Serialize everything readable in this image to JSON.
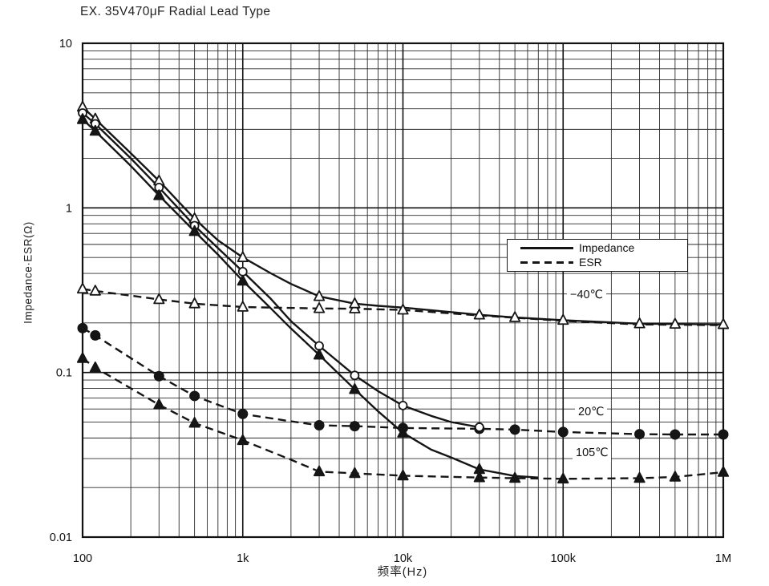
{
  "page": {
    "title": "EX. 35V470μF Radial Lead Type"
  },
  "chart_data": {
    "type": "line",
    "title": "EX. 35V470μF Radial Lead Type",
    "x_axis": {
      "label": "频率(Hz)",
      "scale": "log",
      "range": [
        100,
        1000000
      ],
      "ticks": [
        {
          "f": 100,
          "label": "100"
        },
        {
          "f": 1000,
          "label": "1k"
        },
        {
          "f": 10000,
          "label": "10k"
        },
        {
          "f": 100000,
          "label": "100k"
        },
        {
          "f": 1000000,
          "label": "1M"
        }
      ]
    },
    "y_axis": {
      "label": "Impedance·ESR(Ω)",
      "scale": "log",
      "range": [
        0.01,
        10
      ],
      "ticks": [
        {
          "v": 10,
          "label": "10"
        },
        {
          "v": 1,
          "label": "1"
        },
        {
          "v": 0.1,
          "label": "0.1"
        },
        {
          "v": 0.01,
          "label": "0.01"
        }
      ]
    },
    "grid": "log major + minor, full frame",
    "legend": [
      {
        "label": "Impedance",
        "style": "solid"
      },
      {
        "label": "ESR",
        "style": "dashed"
      }
    ],
    "annotations": [
      {
        "text": "−40℃"
      },
      {
        "text": "20℃"
      },
      {
        "text": "105℃"
      }
    ],
    "series": [
      {
        "id": "esr-m40c",
        "name": "-40℃ ESR",
        "style": "dashed",
        "marker": "triangle-open",
        "points": [
          [
            100,
            0.322
          ],
          [
            120,
            0.313
          ],
          [
            300,
            0.278
          ],
          [
            500,
            0.262
          ],
          [
            1000,
            0.25
          ],
          [
            3000,
            0.245
          ],
          [
            5000,
            0.244
          ],
          [
            10000,
            0.24
          ],
          [
            30000,
            0.222
          ],
          [
            100000,
            0.206
          ],
          [
            300000,
            0.196
          ],
          [
            1000000,
            0.194
          ]
        ],
        "marker_x": [
          100,
          120,
          300,
          500,
          1000,
          3000,
          5000,
          10000
        ]
      },
      {
        "id": "esr-20c",
        "name": "20℃ ESR",
        "style": "dashed",
        "marker": "circle-filled",
        "points": [
          [
            100,
            0.186
          ],
          [
            120,
            0.168
          ],
          [
            300,
            0.095
          ],
          [
            500,
            0.072
          ],
          [
            1000,
            0.056
          ],
          [
            2000,
            0.0505
          ],
          [
            3000,
            0.0478
          ],
          [
            5000,
            0.0472
          ],
          [
            10000,
            0.046
          ],
          [
            30000,
            0.0455
          ],
          [
            50000,
            0.045
          ],
          [
            100000,
            0.0435
          ],
          [
            300000,
            0.0422
          ],
          [
            500000,
            0.042
          ],
          [
            1000000,
            0.042
          ]
        ],
        "marker_x": [
          100,
          120,
          300,
          500,
          1000,
          3000,
          5000,
          10000,
          30000,
          50000,
          100000,
          300000,
          500000,
          1000000
        ]
      },
      {
        "id": "esr-105c",
        "name": "105℃ ESR",
        "style": "dashed",
        "marker": "triangle-filled",
        "points": [
          [
            100,
            0.122
          ],
          [
            120,
            0.107
          ],
          [
            300,
            0.0637
          ],
          [
            500,
            0.0493
          ],
          [
            1000,
            0.0387
          ],
          [
            2000,
            0.0295
          ],
          [
            3000,
            0.025
          ],
          [
            5000,
            0.0244
          ],
          [
            10000,
            0.0236
          ],
          [
            30000,
            0.023
          ],
          [
            50000,
            0.0228
          ],
          [
            100000,
            0.0226
          ],
          [
            300000,
            0.0228
          ],
          [
            500000,
            0.0232
          ],
          [
            1000000,
            0.0248
          ]
        ],
        "marker_x": [
          100,
          120,
          300,
          500,
          1000,
          3000,
          5000,
          10000,
          30000,
          50000,
          100000,
          300000,
          500000,
          1000000
        ]
      },
      {
        "id": "impedance-m40c",
        "name": "-40℃ Impedance",
        "style": "solid",
        "marker": "triangle-open",
        "points": [
          [
            100,
            4.1
          ],
          [
            120,
            3.47
          ],
          [
            200,
            2.15
          ],
          [
            300,
            1.46
          ],
          [
            500,
            0.86
          ],
          [
            700,
            0.635
          ],
          [
            1000,
            0.5
          ],
          [
            1500,
            0.4
          ],
          [
            2000,
            0.345
          ],
          [
            3000,
            0.29
          ],
          [
            5000,
            0.262
          ],
          [
            7000,
            0.254
          ],
          [
            10000,
            0.248
          ],
          [
            30000,
            0.224
          ],
          [
            50000,
            0.216
          ],
          [
            100000,
            0.208
          ],
          [
            300000,
            0.198
          ],
          [
            500000,
            0.197
          ],
          [
            1000000,
            0.196
          ]
        ],
        "marker_x": [
          100,
          120,
          300,
          500,
          1000,
          3000,
          5000,
          30000,
          50000,
          100000,
          300000,
          500000,
          1000000
        ]
      },
      {
        "id": "impedance-20c",
        "name": "20℃ Impedance",
        "style": "solid",
        "marker": "circle-open",
        "points": [
          [
            100,
            3.77
          ],
          [
            120,
            3.24
          ],
          [
            200,
            2.0
          ],
          [
            300,
            1.33
          ],
          [
            500,
            0.78
          ],
          [
            700,
            0.57
          ],
          [
            1000,
            0.41
          ],
          [
            1500,
            0.28
          ],
          [
            2000,
            0.205
          ],
          [
            3000,
            0.145
          ],
          [
            5000,
            0.096
          ],
          [
            7000,
            0.077
          ],
          [
            10000,
            0.063
          ],
          [
            15000,
            0.0545
          ],
          [
            20000,
            0.05
          ],
          [
            30000,
            0.0465
          ]
        ],
        "marker_x": [
          100,
          120,
          300,
          500,
          1000,
          3000,
          5000,
          10000,
          30000
        ]
      },
      {
        "id": "impedance-105c",
        "name": "105℃ Impedance",
        "style": "solid",
        "marker": "triangle-filled",
        "points": [
          [
            100,
            3.45
          ],
          [
            120,
            2.93
          ],
          [
            200,
            1.8
          ],
          [
            300,
            1.19
          ],
          [
            500,
            0.72
          ],
          [
            700,
            0.52
          ],
          [
            1000,
            0.36
          ],
          [
            1500,
            0.245
          ],
          [
            2000,
            0.185
          ],
          [
            3000,
            0.128
          ],
          [
            5000,
            0.079
          ],
          [
            7000,
            0.058
          ],
          [
            10000,
            0.043
          ],
          [
            15000,
            0.034
          ],
          [
            20000,
            0.0305
          ],
          [
            30000,
            0.0258
          ],
          [
            50000,
            0.0235
          ],
          [
            70000,
            0.023
          ]
        ],
        "marker_x": [
          100,
          120,
          300,
          500,
          1000,
          3000,
          5000,
          10000,
          30000
        ]
      }
    ]
  },
  "colors": {
    "ink": "#151515",
    "grid_minor": "#2b2b2b",
    "grid_major": "#111111",
    "background": "#ffffff"
  }
}
